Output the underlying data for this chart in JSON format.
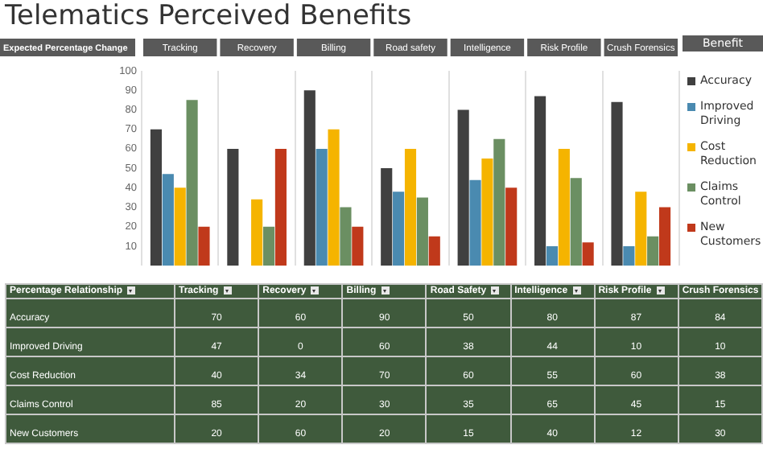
{
  "chart_data": [
    {
      "type": "bar",
      "title": "Telematics Perceived Benefits",
      "ylabel": "Expected Percentage Change",
      "legend_title": "Benefit",
      "categories": [
        "Tracking",
        "Recovery",
        "Billing",
        "Road safety",
        "Intelligence",
        "Risk Profile",
        "Crush Forensics"
      ],
      "series": [
        {
          "name": "Accuracy",
          "color": "#404040",
          "values": [
            70,
            60,
            90,
            50,
            80,
            87,
            84
          ]
        },
        {
          "name": "Improved Driving",
          "color": "#4a8ab0",
          "values": [
            47,
            0,
            60,
            38,
            44,
            10,
            10
          ]
        },
        {
          "name": "Cost Reduction",
          "color": "#f5b400",
          "values": [
            40,
            34,
            70,
            60,
            55,
            60,
            38
          ]
        },
        {
          "name": "Claims Control",
          "color": "#6b8f62",
          "values": [
            85,
            20,
            30,
            35,
            65,
            45,
            15
          ]
        },
        {
          "name": "New Customers",
          "color": "#c0391b",
          "values": [
            20,
            60,
            20,
            15,
            40,
            12,
            30
          ]
        }
      ],
      "ylim": [
        0,
        100
      ],
      "yticks": [
        10,
        20,
        30,
        40,
        50,
        60,
        70,
        80,
        90,
        100
      ],
      "grid": "x",
      "legend": "right"
    },
    {
      "type": "heatmap",
      "ylabel": "Percentage Relationship",
      "color": "#3f5a3c",
      "categories": [
        "Tracking",
        "Recovery",
        "Billing",
        "Road Safety",
        "Intelligence",
        "Risk Profile",
        "Crush Forensics"
      ],
      "y_categories": [
        "Accuracy",
        "Improved Driving",
        "Cost Reduction",
        "Claims Control",
        "New Customers"
      ],
      "cells": [
        [
          70,
          60,
          90,
          50,
          80,
          87,
          84
        ],
        [
          47,
          0,
          60,
          38,
          44,
          10,
          10
        ],
        [
          40,
          34,
          70,
          60,
          55,
          60,
          38
        ],
        [
          85,
          20,
          30,
          35,
          65,
          45,
          15
        ],
        [
          20,
          60,
          20,
          15,
          40,
          12,
          30
        ]
      ],
      "data_labels": true
    }
  ]
}
